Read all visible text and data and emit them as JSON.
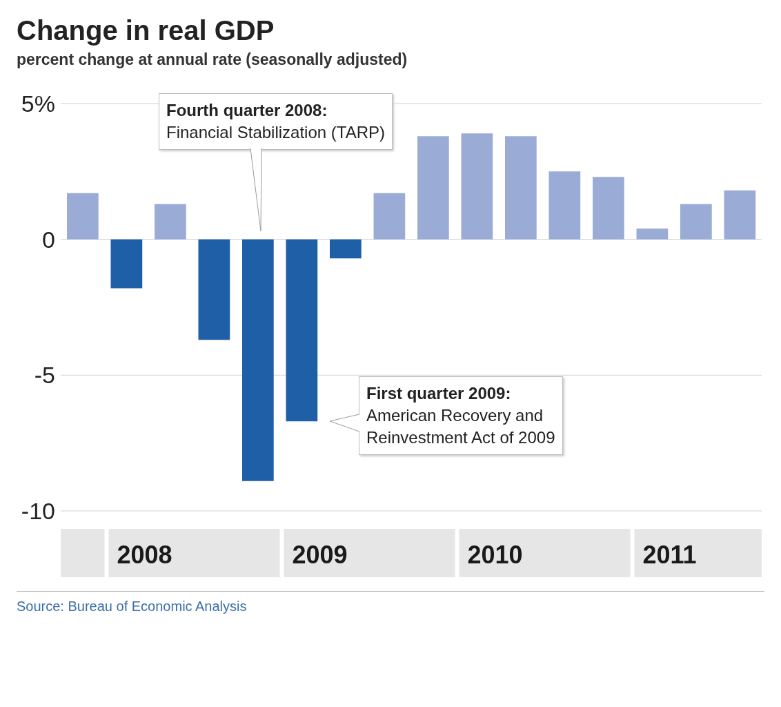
{
  "chart_data": {
    "type": "bar",
    "title": "Change in real GDP",
    "subtitle": "percent change at annual rate (seasonally adjusted)",
    "categories": [
      null,
      "2008",
      null,
      null,
      null,
      "2009",
      null,
      null,
      null,
      "2010",
      null,
      null,
      null,
      "2011",
      null,
      null
    ],
    "values": [
      1.7,
      -1.8,
      1.3,
      -3.7,
      -8.9,
      -6.7,
      -0.7,
      1.7,
      3.8,
      3.9,
      3.8,
      2.5,
      2.3,
      0.4,
      1.3,
      1.8
    ],
    "colors": [
      "#9aabd6",
      "#1f5fa8",
      "#9aabd6",
      "#1f5fa8",
      "#1f5fa8",
      "#1f5fa8",
      "#1f5fa8",
      "#9aabd6",
      "#9aabd6",
      "#9aabd6",
      "#9aabd6",
      "#9aabd6",
      "#9aabd6",
      "#9aabd6",
      "#9aabd6",
      "#9aabd6"
    ],
    "ylim": [
      -10,
      5
    ],
    "yticks": [
      {
        "value": 5,
        "label": "5%"
      },
      0,
      -5,
      -10
    ],
    "grid": "y",
    "annotations": [
      "Fourth quarter 2008:\nFinancial Stabilization (TARP)",
      "First quarter 2009:\nAmerican Recovery and\nReinvestment Act of 2009",
      "Source: Bureau of Economic Analysis"
    ]
  }
}
